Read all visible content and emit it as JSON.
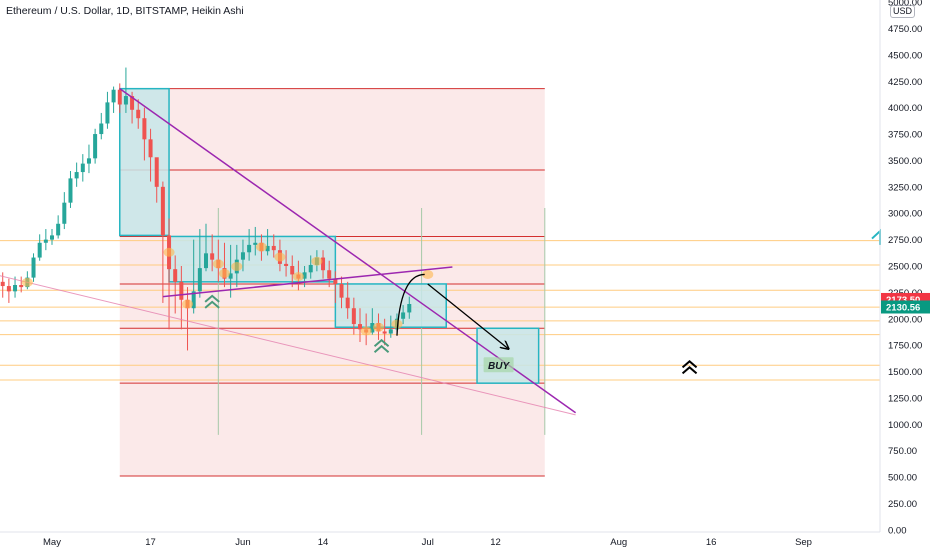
{
  "header": {
    "title": "Ethereum / U.S. Dollar, 1D, BITSTAMP, Heikin Ashi",
    "currency": "USD"
  },
  "colors": {
    "bull": "#26a69a",
    "bear": "#ef5350",
    "box_fill": "#c7e6e9",
    "box_stroke": "#26b5c2",
    "red_line": "#d32f2f",
    "orange_line": "#ffcc80",
    "trend_line": "#9c27b0",
    "zone_fill": "#fbe9e9",
    "price_red": "#f23645",
    "price_teal": "#089981"
  },
  "chart_data": {
    "type": "candlestick",
    "title": "Ethereum / U.S. Dollar, 1D, BITSTAMP, Heikin Ashi",
    "ylim": [
      -20,
      5020
    ],
    "y_ticks": [
      0,
      250,
      500,
      750,
      1000,
      1250,
      1500,
      1750,
      2000,
      2250,
      2500,
      2750,
      3000,
      3250,
      3500,
      3750,
      4000,
      4250,
      4500,
      4750,
      5000
    ],
    "y_tick_labels": [
      "0.00",
      "250.00",
      "500.00",
      "750.00",
      "1000.00",
      "1250.00",
      "1500.00",
      "1750.00",
      "2000.00",
      "2250.00",
      "2500.00",
      "2750.00",
      "3000.00",
      "3250.00",
      "3500.00",
      "3750.00",
      "4000.00",
      "4250.00",
      "4500.00",
      "4750.00",
      "5000.00"
    ],
    "x_ticks": [
      "May",
      "17",
      "Jun",
      "14",
      "Jul",
      "12",
      "Aug",
      "16",
      "Sep"
    ],
    "x_tick_days": [
      0,
      16,
      31,
      44,
      61,
      72,
      92,
      107,
      122
    ],
    "price_labels": [
      {
        "label": "2173.50",
        "value": 2173.5,
        "color": "#f23645"
      },
      {
        "label": "2130.56",
        "value": 2130.56,
        "color": "#089981"
      }
    ],
    "candles": [
      [
        -8,
        2350,
        2310,
        2440,
        2200
      ],
      [
        -7,
        2310,
        2260,
        2380,
        2150
      ],
      [
        -6,
        2260,
        2320,
        2400,
        2200
      ],
      [
        -5,
        2320,
        2300,
        2400,
        2250
      ],
      [
        -4,
        2300,
        2390,
        2450,
        2280
      ],
      [
        -3,
        2390,
        2580,
        2620,
        2350
      ],
      [
        -2,
        2580,
        2720,
        2800,
        2550
      ],
      [
        -1,
        2720,
        2750,
        2850,
        2650
      ],
      [
        0,
        2750,
        2790,
        2850,
        2700
      ],
      [
        1,
        2790,
        2900,
        2980,
        2760
      ],
      [
        2,
        2900,
        3100,
        3200,
        2850
      ],
      [
        3,
        3100,
        3330,
        3400,
        3050
      ],
      [
        4,
        3330,
        3390,
        3480,
        3250
      ],
      [
        5,
        3390,
        3470,
        3560,
        3300
      ],
      [
        6,
        3470,
        3520,
        3650,
        3380
      ],
      [
        7,
        3520,
        3750,
        3800,
        3470
      ],
      [
        8,
        3750,
        3850,
        3950,
        3700
      ],
      [
        9,
        3850,
        4050,
        4150,
        3800
      ],
      [
        10,
        4050,
        4170,
        4200,
        3950
      ],
      [
        11,
        4170,
        4030,
        4230,
        3950
      ],
      [
        12,
        4030,
        4110,
        4380,
        3950
      ],
      [
        13,
        4110,
        3980,
        4150,
        3850
      ],
      [
        14,
        3980,
        3900,
        4080,
        3800
      ],
      [
        15,
        3900,
        3700,
        4000,
        3500
      ],
      [
        16,
        3700,
        3530,
        3800,
        3300
      ],
      [
        17,
        3530,
        3250,
        3500,
        3100
      ],
      [
        18,
        3250,
        2790,
        3300,
        2150
      ],
      [
        19,
        2790,
        2470,
        2950,
        1900
      ],
      [
        20,
        2470,
        2350,
        2600,
        2050
      ],
      [
        21,
        2350,
        2180,
        2500,
        1900
      ],
      [
        22,
        2180,
        2100,
        2300,
        1700
      ],
      [
        23,
        2100,
        2260,
        2750,
        2050
      ],
      [
        24,
        2260,
        2480,
        2850,
        2200
      ],
      [
        25,
        2480,
        2620,
        2900,
        2450
      ],
      [
        26,
        2620,
        2560,
        2800,
        2450
      ],
      [
        27,
        2560,
        2480,
        2750,
        2350
      ],
      [
        28,
        2480,
        2380,
        2720,
        2300
      ],
      [
        29,
        2380,
        2430,
        2700,
        2200
      ],
      [
        30,
        2430,
        2560,
        2700,
        2300
      ],
      [
        31,
        2560,
        2630,
        2750,
        2450
      ],
      [
        32,
        2630,
        2700,
        2850,
        2550
      ],
      [
        33,
        2700,
        2720,
        2870,
        2600
      ],
      [
        34,
        2720,
        2640,
        2800,
        2550
      ],
      [
        35,
        2640,
        2690,
        2850,
        2600
      ],
      [
        36,
        2690,
        2650,
        2800,
        2580
      ],
      [
        37,
        2650,
        2520,
        2750,
        2450
      ],
      [
        38,
        2520,
        2500,
        2650,
        2400
      ],
      [
        39,
        2500,
        2420,
        2600,
        2300
      ],
      [
        40,
        2420,
        2380,
        2550,
        2270
      ],
      [
        41,
        2380,
        2440,
        2500,
        2300
      ],
      [
        42,
        2440,
        2510,
        2600,
        2380
      ],
      [
        43,
        2510,
        2580,
        2650,
        2450
      ],
      [
        44,
        2580,
        2460,
        2650,
        2380
      ],
      [
        45,
        2460,
        2380,
        2550,
        2300
      ],
      [
        46,
        2380,
        2330,
        2450,
        2150
      ],
      [
        47,
        2330,
        2200,
        2400,
        2100
      ],
      [
        48,
        2200,
        2100,
        2350,
        2000
      ],
      [
        49,
        2100,
        1950,
        2200,
        1850
      ],
      [
        50,
        1950,
        1900,
        2100,
        1780
      ],
      [
        51,
        1900,
        1870,
        2050,
        1750
      ],
      [
        52,
        1870,
        1960,
        2100,
        1850
      ],
      [
        53,
        1960,
        1880,
        2050,
        1800
      ],
      [
        54,
        1880,
        1860,
        2000,
        1750
      ],
      [
        55,
        1860,
        1900,
        2030,
        1820
      ],
      [
        56,
        1900,
        2000,
        2050,
        1870
      ],
      [
        57,
        2000,
        2060,
        2130,
        1950
      ],
      [
        58,
        2060,
        2140,
        2210,
        2000
      ]
    ],
    "annotations": {
      "red_levels": [
        4180,
        3410,
        2780,
        2330,
        1910,
        1390,
        510
      ],
      "orange_levels": [
        2740,
        2510,
        2270,
        2110,
        1980,
        1850,
        1560,
        1420
      ],
      "zone": {
        "day_from": 11,
        "day_to": 80,
        "price_from": 510,
        "price_to": 4180
      },
      "boxes": [
        {
          "day_from": 11,
          "day_to": 19,
          "price_from": 2790,
          "price_to": 4180
        },
        {
          "day_from": 19,
          "day_to": 46,
          "price_from": 2350,
          "price_to": 2780
        },
        {
          "day_from": 46,
          "day_to": 64,
          "price_from": 1920,
          "price_to": 2330
        },
        {
          "day_from": 69,
          "day_to": 79,
          "price_from": 1390,
          "price_to": 1910
        }
      ],
      "trend_lines": [
        {
          "from": [
            11,
            4180
          ],
          "to": [
            85,
            1110
          ]
        },
        {
          "from": [
            18,
            2210
          ],
          "to": [
            65,
            2490
          ]
        },
        {
          "from": [
            -10,
            2430
          ],
          "to": [
            85,
            1090
          ]
        }
      ],
      "vertical_lines": [
        {
          "day": 27,
          "top": 3050,
          "bottom": 900
        },
        {
          "day": 60,
          "top": 3050,
          "bottom": 900
        },
        {
          "day": 80,
          "top": 3050,
          "bottom": 900
        }
      ],
      "arrow": {
        "from": [
          61,
          2330
        ],
        "to": [
          74,
          1720
        ]
      },
      "curved_arrow": {
        "from": [
          56,
          1840
        ],
        "via": [
          56.5,
          2420
        ],
        "to": [
          60.5,
          2420
        ]
      },
      "buy_label": {
        "text": "BUY",
        "day": 72.5,
        "price": 1560
      },
      "chevrons": [
        {
          "day": 26,
          "price": 2160
        },
        {
          "day": 53.5,
          "price": 1740
        },
        {
          "day": 103.5,
          "price": 1540
        }
      ]
    }
  }
}
